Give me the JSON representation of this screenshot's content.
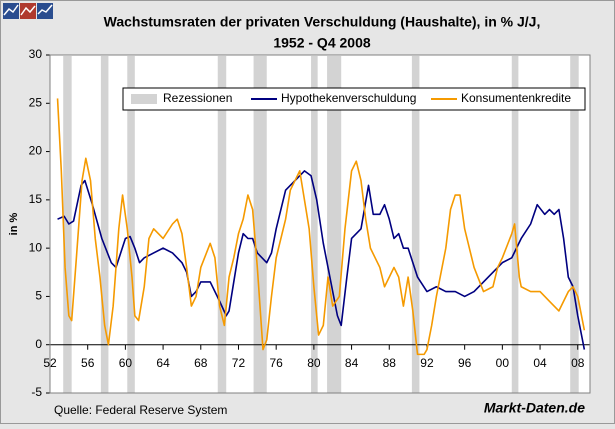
{
  "chart_data": {
    "type": "line",
    "title": "Wachstumsraten der privaten Verschuldung (Haushalte), in % J/J,",
    "subtitle": "1952 - Q4 2008",
    "y_label": "in %",
    "source": "Quelle: Federal Reserve System",
    "brand": "Markt-Daten.de",
    "xlim": [
      1952,
      2009.3
    ],
    "ylim": [
      -5,
      30
    ],
    "yticks": [
      -5,
      0,
      5,
      10,
      15,
      20,
      25,
      30
    ],
    "xticks": [
      {
        "value": 1952,
        "label": "52"
      },
      {
        "value": 1956,
        "label": "56"
      },
      {
        "value": 1960,
        "label": "60"
      },
      {
        "value": 1964,
        "label": "64"
      },
      {
        "value": 1968,
        "label": "68"
      },
      {
        "value": 1972,
        "label": "72"
      },
      {
        "value": 1976,
        "label": "76"
      },
      {
        "value": 1980,
        "label": "80"
      },
      {
        "value": 1984,
        "label": "84"
      },
      {
        "value": 1988,
        "label": "88"
      },
      {
        "value": 1992,
        "label": "92"
      },
      {
        "value": 1996,
        "label": "96"
      },
      {
        "value": 2000,
        "label": "00"
      },
      {
        "value": 2004,
        "label": "04"
      },
      {
        "value": 2008,
        "label": "08"
      }
    ],
    "recession_name": "Rezessionen",
    "recession_color": "#d3d3d3",
    "recessions": [
      [
        1953.4,
        1954.3
      ],
      [
        1957.4,
        1958.2
      ],
      [
        1960.2,
        1961.0
      ],
      [
        1969.8,
        1970.7
      ],
      [
        1973.6,
        1975.0
      ],
      [
        1979.7,
        1980.4
      ],
      [
        1981.4,
        1982.9
      ],
      [
        1990.4,
        1991.2
      ],
      [
        2001.0,
        2001.7
      ],
      [
        2007.2,
        2008.1
      ]
    ],
    "series": [
      {
        "name": "Hypothekenverschuldung",
        "color": "#000080",
        "x": [
          1952.8,
          1953.5,
          1954,
          1954.5,
          1955.3,
          1955.7,
          1956.5,
          1957.5,
          1958.5,
          1959,
          1960,
          1960.5,
          1961,
          1961.5,
          1962,
          1963,
          1964,
          1965,
          1966,
          1966.5,
          1967,
          1967.5,
          1968,
          1969,
          1970,
          1970.7,
          1971,
          1971.5,
          1972,
          1972.5,
          1973,
          1973.5,
          1974,
          1975,
          1975.5,
          1976,
          1977,
          1978,
          1979,
          1979.7,
          1980.3,
          1981,
          1981.5,
          1982.5,
          1982.9,
          1983.5,
          1984,
          1985,
          1985.8,
          1986.3,
          1987,
          1987.5,
          1988,
          1988.5,
          1989,
          1989.5,
          1990,
          1990.5,
          1991,
          1992,
          1993,
          1994,
          1995,
          1996,
          1997,
          1998,
          1999,
          2000,
          2001,
          2002,
          2003,
          2003.7,
          2004.5,
          2005,
          2005.5,
          2006,
          2006.5,
          2007,
          2007.5,
          2008,
          2008.7
        ],
        "values": [
          13,
          13.3,
          12.5,
          12.8,
          16.5,
          17,
          14.5,
          11,
          8.5,
          8,
          11,
          11.2,
          10,
          8.5,
          9,
          9.5,
          10,
          9.5,
          8.5,
          7.5,
          5,
          5.5,
          6.5,
          6.5,
          4.5,
          3,
          3.5,
          6.5,
          9.5,
          11.5,
          11,
          11,
          9.5,
          8.5,
          9.5,
          12,
          16,
          17,
          18,
          17.5,
          15,
          10.5,
          8,
          3,
          2,
          7,
          11,
          12,
          16.5,
          13.5,
          13.5,
          14.5,
          13,
          11,
          11.5,
          10,
          10,
          8.5,
          7,
          5.5,
          6,
          5.5,
          5.5,
          5,
          5.5,
          6.5,
          7.5,
          8.5,
          9,
          11,
          12.5,
          14.5,
          13.5,
          14,
          13.5,
          14,
          11,
          7,
          6,
          3,
          -0.5
        ]
      },
      {
        "name": "Konsumentenkredite",
        "color": "#f59a00",
        "x": [
          1952.8,
          1953.2,
          1953.6,
          1954,
          1954.3,
          1954.8,
          1955.4,
          1955.8,
          1956.3,
          1956.8,
          1957.3,
          1957.8,
          1958.2,
          1958.7,
          1959.3,
          1959.7,
          1960.2,
          1960.7,
          1961,
          1961.4,
          1962,
          1962.5,
          1963,
          1964,
          1965,
          1965.5,
          1966,
          1966.5,
          1967,
          1967.5,
          1968,
          1969,
          1969.5,
          1970,
          1970.5,
          1971,
          1971.5,
          1972,
          1972.5,
          1973,
          1973.5,
          1974,
          1974.6,
          1975,
          1975.5,
          1976,
          1977,
          1977.5,
          1978,
          1978.5,
          1979,
          1979.5,
          1980,
          1980.5,
          1981,
          1981.5,
          1982,
          1982.7,
          1983.3,
          1984,
          1984.5,
          1985,
          1985.5,
          1986,
          1987,
          1987.5,
          1988,
          1988.5,
          1989,
          1989.5,
          1990,
          1990.5,
          1991,
          1991.7,
          1992,
          1992.5,
          1993,
          1994,
          1994.5,
          1995,
          1995.5,
          1996,
          1997,
          1998,
          1999,
          1999.5,
          2000,
          2001,
          2001.3,
          2001.8,
          2002,
          2003,
          2004,
          2005,
          2006,
          2007,
          2007.5,
          2008,
          2008.7
        ],
        "values": [
          25.5,
          18,
          8,
          3,
          2.5,
          9,
          17,
          19.3,
          17,
          11,
          7,
          2,
          0,
          4,
          12,
          15.5,
          12,
          7,
          3,
          2.5,
          6,
          11,
          12,
          11,
          12.5,
          13,
          11.5,
          8,
          4,
          5,
          8,
          10.5,
          9,
          4,
          2,
          7,
          9,
          11.5,
          13,
          15.5,
          14,
          8,
          -0.5,
          0.5,
          5,
          9,
          13,
          16,
          17,
          18,
          15,
          12,
          6,
          1,
          2,
          7,
          4,
          5,
          12,
          18,
          19,
          17,
          13,
          10,
          8,
          6,
          7,
          8,
          7,
          4,
          7,
          3.5,
          -1,
          -1,
          -0.5,
          2,
          5,
          10,
          14,
          15.5,
          15.5,
          12,
          8,
          5.5,
          6,
          8,
          9,
          11.5,
          12.5,
          7,
          6,
          5.5,
          5.5,
          4.5,
          3.5,
          5.5,
          6,
          5,
          1.5
        ]
      }
    ]
  }
}
